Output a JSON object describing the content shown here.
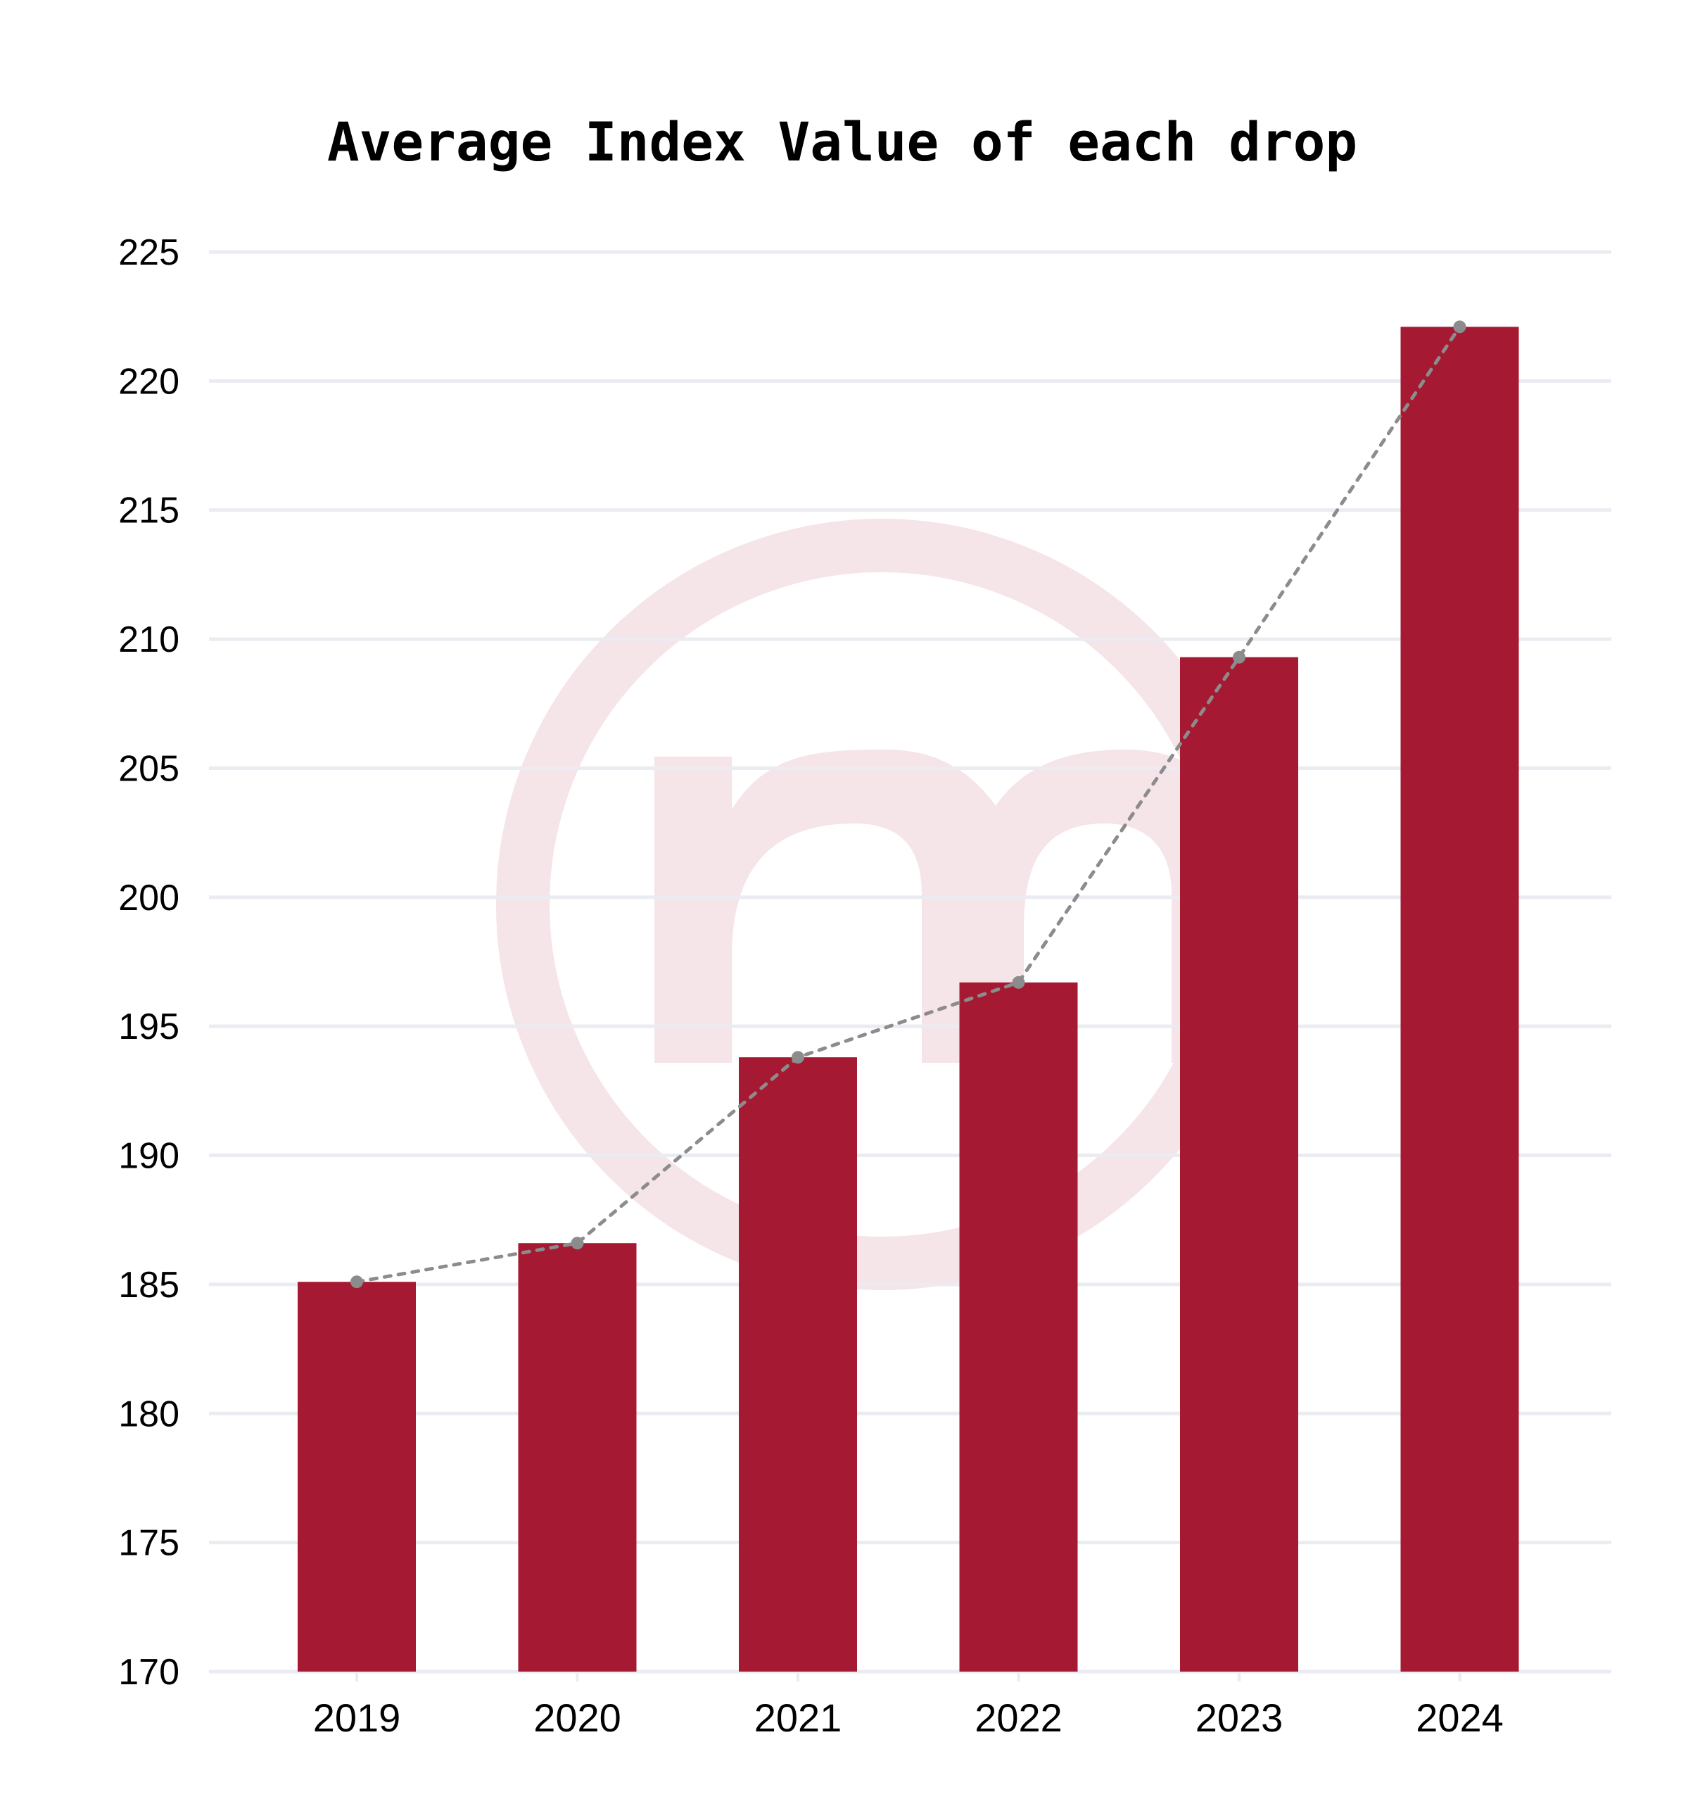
{
  "chart_data": {
    "type": "bar",
    "title": "Average Index Value of each drop",
    "xlabel": "",
    "ylabel": "",
    "categories": [
      "2019",
      "2020",
      "2021",
      "2022",
      "2023",
      "2024"
    ],
    "values": [
      185.1,
      186.6,
      193.8,
      196.7,
      209.3,
      222.1
    ],
    "trend_line": {
      "style": "dotted",
      "markers": true,
      "values": [
        185.1,
        186.6,
        193.8,
        196.7,
        209.3,
        222.1
      ]
    },
    "ylim": [
      170,
      225
    ],
    "yticks": [
      "170",
      "175",
      "180",
      "185",
      "190",
      "195",
      "200",
      "205",
      "210",
      "215",
      "220",
      "225"
    ],
    "grid": true,
    "legend": "none",
    "watermark": "m-logo-icon"
  },
  "colors": {
    "bar": "#a51933",
    "trend": "#8c8c8c",
    "grid": "#ebebf2",
    "watermark": "#f5e4e8"
  }
}
